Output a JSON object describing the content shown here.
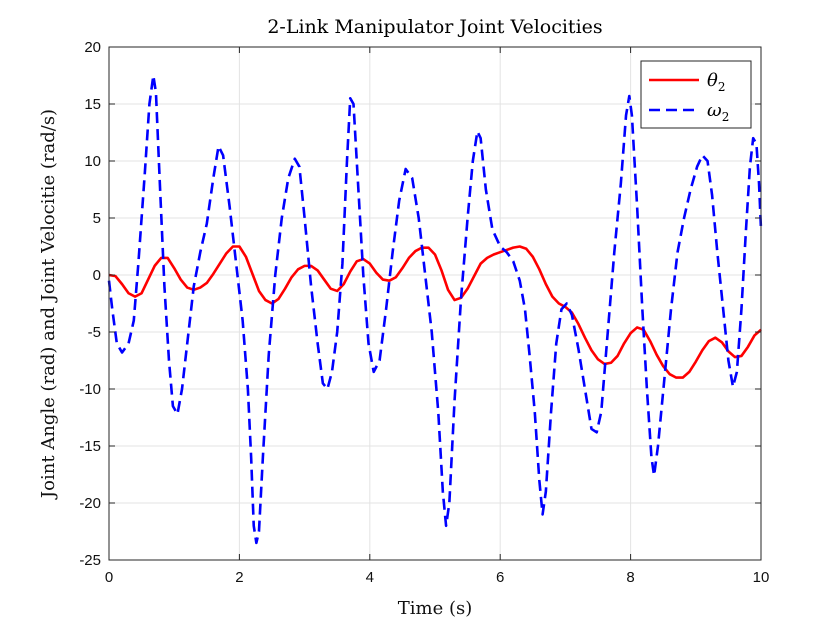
{
  "chart_data": {
    "type": "line",
    "title": "2-Link Manipulator Joint Velocities",
    "xlabel": "Time (s)",
    "ylabel": "Joint Angle (rad) and Joint Velocitie (rad/s)",
    "xlim": [
      0,
      10
    ],
    "ylim": [
      -25,
      20
    ],
    "xticks": [
      0,
      2,
      4,
      6,
      8,
      10
    ],
    "yticks": [
      -25,
      -20,
      -15,
      -10,
      -5,
      0,
      5,
      10,
      15,
      20
    ],
    "grid": true,
    "legend_position": "top-right",
    "series": [
      {
        "name": "θ2",
        "legend_base": "θ",
        "legend_sub": "2",
        "color": "#ff0000",
        "style": "solid",
        "points": [
          [
            0,
            0
          ],
          [
            0.1,
            -0.1
          ],
          [
            0.2,
            -0.8
          ],
          [
            0.3,
            -1.6
          ],
          [
            0.4,
            -1.9
          ],
          [
            0.5,
            -1.6
          ],
          [
            0.6,
            -0.4
          ],
          [
            0.7,
            0.8
          ],
          [
            0.8,
            1.5
          ],
          [
            0.9,
            1.5
          ],
          [
            1.0,
            0.6
          ],
          [
            1.1,
            -0.4
          ],
          [
            1.2,
            -1.1
          ],
          [
            1.3,
            -1.3
          ],
          [
            1.4,
            -1.1
          ],
          [
            1.5,
            -0.7
          ],
          [
            1.6,
            0.1
          ],
          [
            1.7,
            1.0
          ],
          [
            1.8,
            1.9
          ],
          [
            1.9,
            2.5
          ],
          [
            2.0,
            2.5
          ],
          [
            2.1,
            1.6
          ],
          [
            2.2,
            0.1
          ],
          [
            2.3,
            -1.4
          ],
          [
            2.4,
            -2.2
          ],
          [
            2.5,
            -2.5
          ],
          [
            2.6,
            -2.1
          ],
          [
            2.7,
            -1.2
          ],
          [
            2.8,
            -0.2
          ],
          [
            2.9,
            0.5
          ],
          [
            3.0,
            0.8
          ],
          [
            3.1,
            0.8
          ],
          [
            3.2,
            0.4
          ],
          [
            3.3,
            -0.4
          ],
          [
            3.4,
            -1.2
          ],
          [
            3.5,
            -1.4
          ],
          [
            3.6,
            -0.8
          ],
          [
            3.7,
            0.3
          ],
          [
            3.8,
            1.2
          ],
          [
            3.9,
            1.4
          ],
          [
            4.0,
            1.0
          ],
          [
            4.1,
            0.2
          ],
          [
            4.2,
            -0.4
          ],
          [
            4.3,
            -0.5
          ],
          [
            4.4,
            -0.2
          ],
          [
            4.5,
            0.6
          ],
          [
            4.6,
            1.5
          ],
          [
            4.7,
            2.1
          ],
          [
            4.8,
            2.4
          ],
          [
            4.9,
            2.4
          ],
          [
            5.0,
            1.8
          ],
          [
            5.1,
            0.4
          ],
          [
            5.2,
            -1.3
          ],
          [
            5.3,
            -2.2
          ],
          [
            5.4,
            -2.0
          ],
          [
            5.5,
            -1.2
          ],
          [
            5.6,
            -0.1
          ],
          [
            5.7,
            1.0
          ],
          [
            5.8,
            1.5
          ],
          [
            5.9,
            1.8
          ],
          [
            6.0,
            2.0
          ],
          [
            6.1,
            2.2
          ],
          [
            6.2,
            2.4
          ],
          [
            6.3,
            2.5
          ],
          [
            6.4,
            2.3
          ],
          [
            6.5,
            1.6
          ],
          [
            6.6,
            0.5
          ],
          [
            6.7,
            -0.8
          ],
          [
            6.8,
            -1.9
          ],
          [
            6.9,
            -2.5
          ],
          [
            7.0,
            -2.8
          ],
          [
            7.1,
            -3.3
          ],
          [
            7.2,
            -4.3
          ],
          [
            7.3,
            -5.5
          ],
          [
            7.4,
            -6.6
          ],
          [
            7.5,
            -7.4
          ],
          [
            7.6,
            -7.8
          ],
          [
            7.7,
            -7.7
          ],
          [
            7.8,
            -7.1
          ],
          [
            7.9,
            -6.0
          ],
          [
            8.0,
            -5.1
          ],
          [
            8.1,
            -4.6
          ],
          [
            8.2,
            -4.8
          ],
          [
            8.3,
            -5.8
          ],
          [
            8.4,
            -7.0
          ],
          [
            8.5,
            -8.0
          ],
          [
            8.6,
            -8.7
          ],
          [
            8.7,
            -9.0
          ],
          [
            8.8,
            -9.0
          ],
          [
            8.9,
            -8.5
          ],
          [
            9.0,
            -7.6
          ],
          [
            9.1,
            -6.6
          ],
          [
            9.2,
            -5.8
          ],
          [
            9.3,
            -5.5
          ],
          [
            9.4,
            -5.9
          ],
          [
            9.5,
            -6.7
          ],
          [
            9.6,
            -7.2
          ],
          [
            9.7,
            -7.1
          ],
          [
            9.8,
            -6.3
          ],
          [
            9.9,
            -5.3
          ],
          [
            10.0,
            -4.8
          ]
        ]
      },
      {
        "name": "ω2",
        "legend_base": "ω",
        "legend_sub": "2",
        "color": "#0000ff",
        "style": "dashed",
        "points": [
          [
            0,
            -0.5
          ],
          [
            0.05,
            -3
          ],
          [
            0.12,
            -6.0
          ],
          [
            0.2,
            -6.8
          ],
          [
            0.3,
            -6.0
          ],
          [
            0.38,
            -4.0
          ],
          [
            0.45,
            1.0
          ],
          [
            0.55,
            9.0
          ],
          [
            0.62,
            15.0
          ],
          [
            0.68,
            17.5
          ],
          [
            0.72,
            16.0
          ],
          [
            0.78,
            8.0
          ],
          [
            0.85,
            -1.0
          ],
          [
            0.92,
            -7.5
          ],
          [
            0.98,
            -11.5
          ],
          [
            1.05,
            -12.2
          ],
          [
            1.12,
            -10.0
          ],
          [
            1.2,
            -6.0
          ],
          [
            1.3,
            -1.0
          ],
          [
            1.4,
            2.0
          ],
          [
            1.5,
            4.5
          ],
          [
            1.6,
            8.5
          ],
          [
            1.68,
            11.3
          ],
          [
            1.75,
            10.5
          ],
          [
            1.85,
            6.0
          ],
          [
            1.95,
            1.0
          ],
          [
            2.05,
            -4.0
          ],
          [
            2.13,
            -10.0
          ],
          [
            2.18,
            -16.0
          ],
          [
            2.22,
            -22.0
          ],
          [
            2.26,
            -23.5
          ],
          [
            2.3,
            -22.5
          ],
          [
            2.36,
            -16.0
          ],
          [
            2.45,
            -7.0
          ],
          [
            2.55,
            0.0
          ],
          [
            2.65,
            5.0
          ],
          [
            2.75,
            8.5
          ],
          [
            2.85,
            10.2
          ],
          [
            2.92,
            9.5
          ],
          [
            3.0,
            5.0
          ],
          [
            3.1,
            -1.0
          ],
          [
            3.2,
            -6.0
          ],
          [
            3.28,
            -9.5
          ],
          [
            3.35,
            -10.0
          ],
          [
            3.42,
            -8.5
          ],
          [
            3.5,
            -5.0
          ],
          [
            3.58,
            1.0
          ],
          [
            3.65,
            10.0
          ],
          [
            3.7,
            15.5
          ],
          [
            3.75,
            15.0
          ],
          [
            3.82,
            8.0
          ],
          [
            3.9,
            0.0
          ],
          [
            3.98,
            -6.0
          ],
          [
            4.06,
            -8.5
          ],
          [
            4.15,
            -7.5
          ],
          [
            4.25,
            -3.0
          ],
          [
            4.35,
            2.0
          ],
          [
            4.45,
            6.5
          ],
          [
            4.55,
            9.3
          ],
          [
            4.65,
            8.5
          ],
          [
            4.75,
            5.0
          ],
          [
            4.85,
            0.0
          ],
          [
            4.95,
            -5.0
          ],
          [
            5.05,
            -12.0
          ],
          [
            5.12,
            -19.0
          ],
          [
            5.17,
            -22.0
          ],
          [
            5.22,
            -20.0
          ],
          [
            5.3,
            -11.0
          ],
          [
            5.4,
            -2.0
          ],
          [
            5.5,
            5.0
          ],
          [
            5.58,
            10.0
          ],
          [
            5.65,
            12.6
          ],
          [
            5.7,
            12.0
          ],
          [
            5.78,
            7.5
          ],
          [
            5.88,
            4.0
          ],
          [
            6.0,
            2.5
          ],
          [
            6.1,
            2.0
          ],
          [
            6.2,
            1.2
          ],
          [
            6.3,
            -0.5
          ],
          [
            6.38,
            -3.0
          ],
          [
            6.45,
            -7.0
          ],
          [
            6.53,
            -12.0
          ],
          [
            6.6,
            -18.0
          ],
          [
            6.65,
            -21.0
          ],
          [
            6.7,
            -19.0
          ],
          [
            6.78,
            -12.0
          ],
          [
            6.86,
            -6.0
          ],
          [
            6.94,
            -3.0
          ],
          [
            7.02,
            -2.5
          ],
          [
            7.1,
            -3.5
          ],
          [
            7.2,
            -6.5
          ],
          [
            7.3,
            -10.0
          ],
          [
            7.4,
            -13.5
          ],
          [
            7.48,
            -13.8
          ],
          [
            7.55,
            -12.0
          ],
          [
            7.65,
            -5.0
          ],
          [
            7.75,
            2.0
          ],
          [
            7.85,
            8.0
          ],
          [
            7.93,
            14.0
          ],
          [
            7.98,
            15.7
          ],
          [
            8.02,
            14.0
          ],
          [
            8.1,
            6.0
          ],
          [
            8.18,
            -3.0
          ],
          [
            8.25,
            -10.0
          ],
          [
            8.32,
            -16.0
          ],
          [
            8.36,
            -17.6
          ],
          [
            8.42,
            -15.0
          ],
          [
            8.52,
            -9.0
          ],
          [
            8.62,
            -3.0
          ],
          [
            8.72,
            2.0
          ],
          [
            8.82,
            5.0
          ],
          [
            8.92,
            7.5
          ],
          [
            9.02,
            9.5
          ],
          [
            9.1,
            10.5
          ],
          [
            9.18,
            10.0
          ],
          [
            9.25,
            7.0
          ],
          [
            9.33,
            2.0
          ],
          [
            9.42,
            -3.0
          ],
          [
            9.5,
            -7.5
          ],
          [
            9.57,
            -9.8
          ],
          [
            9.63,
            -8.5
          ],
          [
            9.7,
            -3.0
          ],
          [
            9.77,
            4.0
          ],
          [
            9.83,
            9.5
          ],
          [
            9.88,
            12.0
          ],
          [
            9.93,
            11.5
          ],
          [
            9.97,
            8.0
          ],
          [
            10.0,
            4.0
          ]
        ]
      }
    ]
  }
}
